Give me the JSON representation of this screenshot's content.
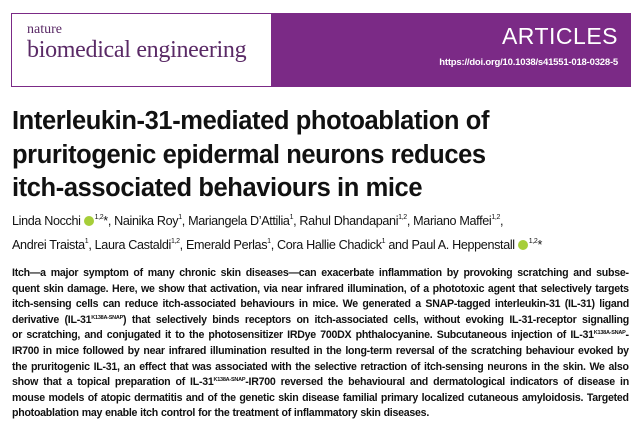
{
  "header": {
    "journal_line1": "nature",
    "journal_line2": "biomedical engineering",
    "section": "ARTICLES",
    "doi": "https://doi.org/10.1038/s41551-018-0328-5",
    "brand_color": "#7b2a86"
  },
  "title_lines": [
    "Interleukin-31-mediated photoablation of",
    "pruritogenic epidermal neurons reduces",
    "itch-associated behaviours in mice"
  ],
  "authors": [
    [
      {
        "name": "Linda Nocchi",
        "orcid": true,
        "sup": "1,2",
        "sep": "*, "
      },
      {
        "name": "Nainika Roy",
        "sup": "1",
        "sep": ", "
      },
      {
        "name": "Mariangela D’Attilia",
        "sup": "1",
        "sep": ", "
      },
      {
        "name": "Rahul Dhandapani",
        "sup": "1,2",
        "sep": ", "
      },
      {
        "name": "Mariano Maffei",
        "sup": "1,2",
        "sep": ","
      }
    ],
    [
      {
        "name": "Andrei Traista",
        "sup": "1",
        "sep": ", "
      },
      {
        "name": "Laura Castaldi",
        "sup": "1,2",
        "sep": ", "
      },
      {
        "name": "Emerald Perlas",
        "sup": "1",
        "sep": ", "
      },
      {
        "name": "Cora Hallie Chadick",
        "sup": "1",
        "sep": " and "
      },
      {
        "name": "Paul A. Heppenstall",
        "orcid": true,
        "sup": "1,2",
        "sep": "*"
      }
    ]
  ],
  "abstract_lines": [
    [
      {
        "t": "Itch—a major symptom of many chronic skin diseases—can exacerbate inflammation by provoking scratching and subse-"
      }
    ],
    [
      {
        "t": "quent skin damage. Here, we show that activation, via near infrared illumination, of a phototoxic agent that selectively targets"
      }
    ],
    [
      {
        "t": "itch-sensing cells can reduce itch-associated behaviours in mice. We generated a SNAP-tagged interleukin-31 (IL-31) ligand"
      }
    ],
    [
      {
        "t": "derivative (IL-31"
      },
      {
        "t": "K138A-SNAP",
        "sup": true
      },
      {
        "t": ") that selectively binds receptors on itch-associated cells, without evoking IL-31-receptor signalling"
      }
    ],
    [
      {
        "t": "or scratching, and conjugated it to the photosensitizer IRDye 700DX phthalocyanine. Subcutaneous injection of IL-31"
      },
      {
        "t": "K138A-SNAP",
        "sup": true
      },
      {
        "t": "-"
      }
    ],
    [
      {
        "t": "IR700 in mice followed by near infrared illumination resulted in the long-term reversal of the scratching behaviour evoked by"
      }
    ],
    [
      {
        "t": "the pruritogenic IL-31, an effect that was associated with the selective retraction of itch-sensing neurons in the skin. We also"
      }
    ],
    [
      {
        "t": "show that a topical preparation of IL-31"
      },
      {
        "t": "K138A-SNAP",
        "sup": true
      },
      {
        "t": "-IR700 reversed the behavioural and dermatological indicators of disease in"
      }
    ],
    [
      {
        "t": "mouse models of atopic dermatitis and of the genetic skin disease familial primary localized cutaneous amyloidosis. Targeted"
      }
    ],
    [
      {
        "t": "photoablation may enable itch control for the treatment of inflammatory skin diseases."
      }
    ]
  ]
}
